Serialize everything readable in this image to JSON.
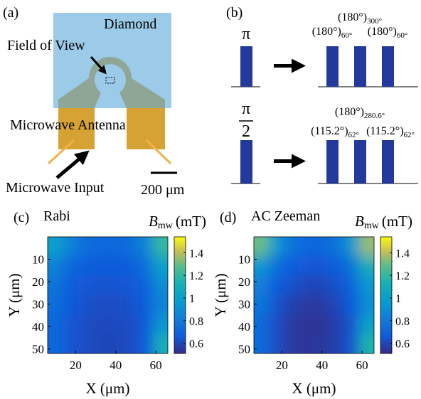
{
  "panel_a": {
    "label": "(a)",
    "diamond": "Diamond",
    "field_of_view": "Field of View",
    "antenna": "Microwave Antenna",
    "input": "Microwave Input",
    "scale_bar": "200 μm"
  },
  "panel_b": {
    "label": "(b)",
    "rows": [
      {
        "pulse": [
          "π"
        ],
        "pulses": [
          {
            "angle": "(180°)",
            "phase": "60°"
          },
          {
            "angle": "(180°)",
            "phase": "300°"
          },
          {
            "angle": "(180°)",
            "phase": "60°"
          }
        ]
      },
      {
        "pulse": [
          "π",
          "2"
        ],
        "pulses": [
          {
            "angle": "(115.2°)",
            "phase": "62°"
          },
          {
            "angle": "(180°)",
            "phase": "280.6°"
          },
          {
            "angle": "(115.2°)",
            "phase": "62°"
          }
        ]
      }
    ]
  },
  "chart_data": [
    {
      "type": "heatmap",
      "panel": "(c)",
      "title": "Rabi",
      "colorbar_label": {
        "symbol": "B",
        "subscript": "mw",
        "unit": "(mT)"
      },
      "xlabel": "X (μm)",
      "ylabel": "Y (μm)",
      "xlim": [
        6,
        66
      ],
      "ylim": [
        0,
        52
      ],
      "xticks": [
        20,
        40,
        60
      ],
      "yticks": [
        10,
        20,
        30,
        40,
        50
      ],
      "clim": [
        0.51,
        1.54
      ],
      "cticks": [
        0.6,
        0.8,
        1,
        1.2,
        1.4
      ],
      "colormap": "parula",
      "values": [
        [
          1.0,
          0.85,
          0.75,
          0.72,
          0.72,
          0.75,
          0.85,
          1.2
        ],
        [
          0.85,
          0.72,
          0.68,
          0.66,
          0.66,
          0.68,
          0.75,
          1.0
        ],
        [
          0.78,
          0.68,
          0.65,
          0.64,
          0.64,
          0.65,
          0.7,
          0.9
        ],
        [
          0.75,
          0.66,
          0.63,
          0.62,
          0.62,
          0.63,
          0.68,
          0.85
        ],
        [
          0.72,
          0.65,
          0.62,
          0.61,
          0.61,
          0.62,
          0.66,
          0.95
        ],
        [
          0.72,
          0.65,
          0.62,
          0.6,
          0.6,
          0.62,
          0.66,
          1.1
        ]
      ]
    },
    {
      "type": "heatmap",
      "panel": "(d)",
      "title": "AC Zeeman",
      "colorbar_label": {
        "symbol": "B",
        "subscript": "mw",
        "unit": "(mT)"
      },
      "xlabel": "X (μm)",
      "ylabel": "Y (μm)",
      "xlim": [
        6,
        66
      ],
      "ylim": [
        0,
        52
      ],
      "xticks": [
        20,
        40,
        60
      ],
      "yticks": [
        10,
        20,
        30,
        40,
        50
      ],
      "clim": [
        0.51,
        1.54
      ],
      "cticks": [
        0.6,
        0.8,
        1,
        1.2,
        1.4
      ],
      "colormap": "parula",
      "values": [
        [
          1.3,
          0.95,
          0.78,
          0.72,
          0.72,
          0.78,
          0.95,
          1.35
        ],
        [
          0.95,
          0.75,
          0.68,
          0.65,
          0.65,
          0.68,
          0.78,
          1.1
        ],
        [
          0.82,
          0.68,
          0.63,
          0.6,
          0.6,
          0.63,
          0.7,
          0.95
        ],
        [
          0.78,
          0.64,
          0.58,
          0.56,
          0.56,
          0.6,
          0.66,
          0.9
        ],
        [
          0.74,
          0.62,
          0.56,
          0.54,
          0.54,
          0.58,
          0.64,
          1.0
        ],
        [
          0.74,
          0.62,
          0.56,
          0.54,
          0.55,
          0.58,
          0.64,
          1.15
        ]
      ]
    }
  ]
}
